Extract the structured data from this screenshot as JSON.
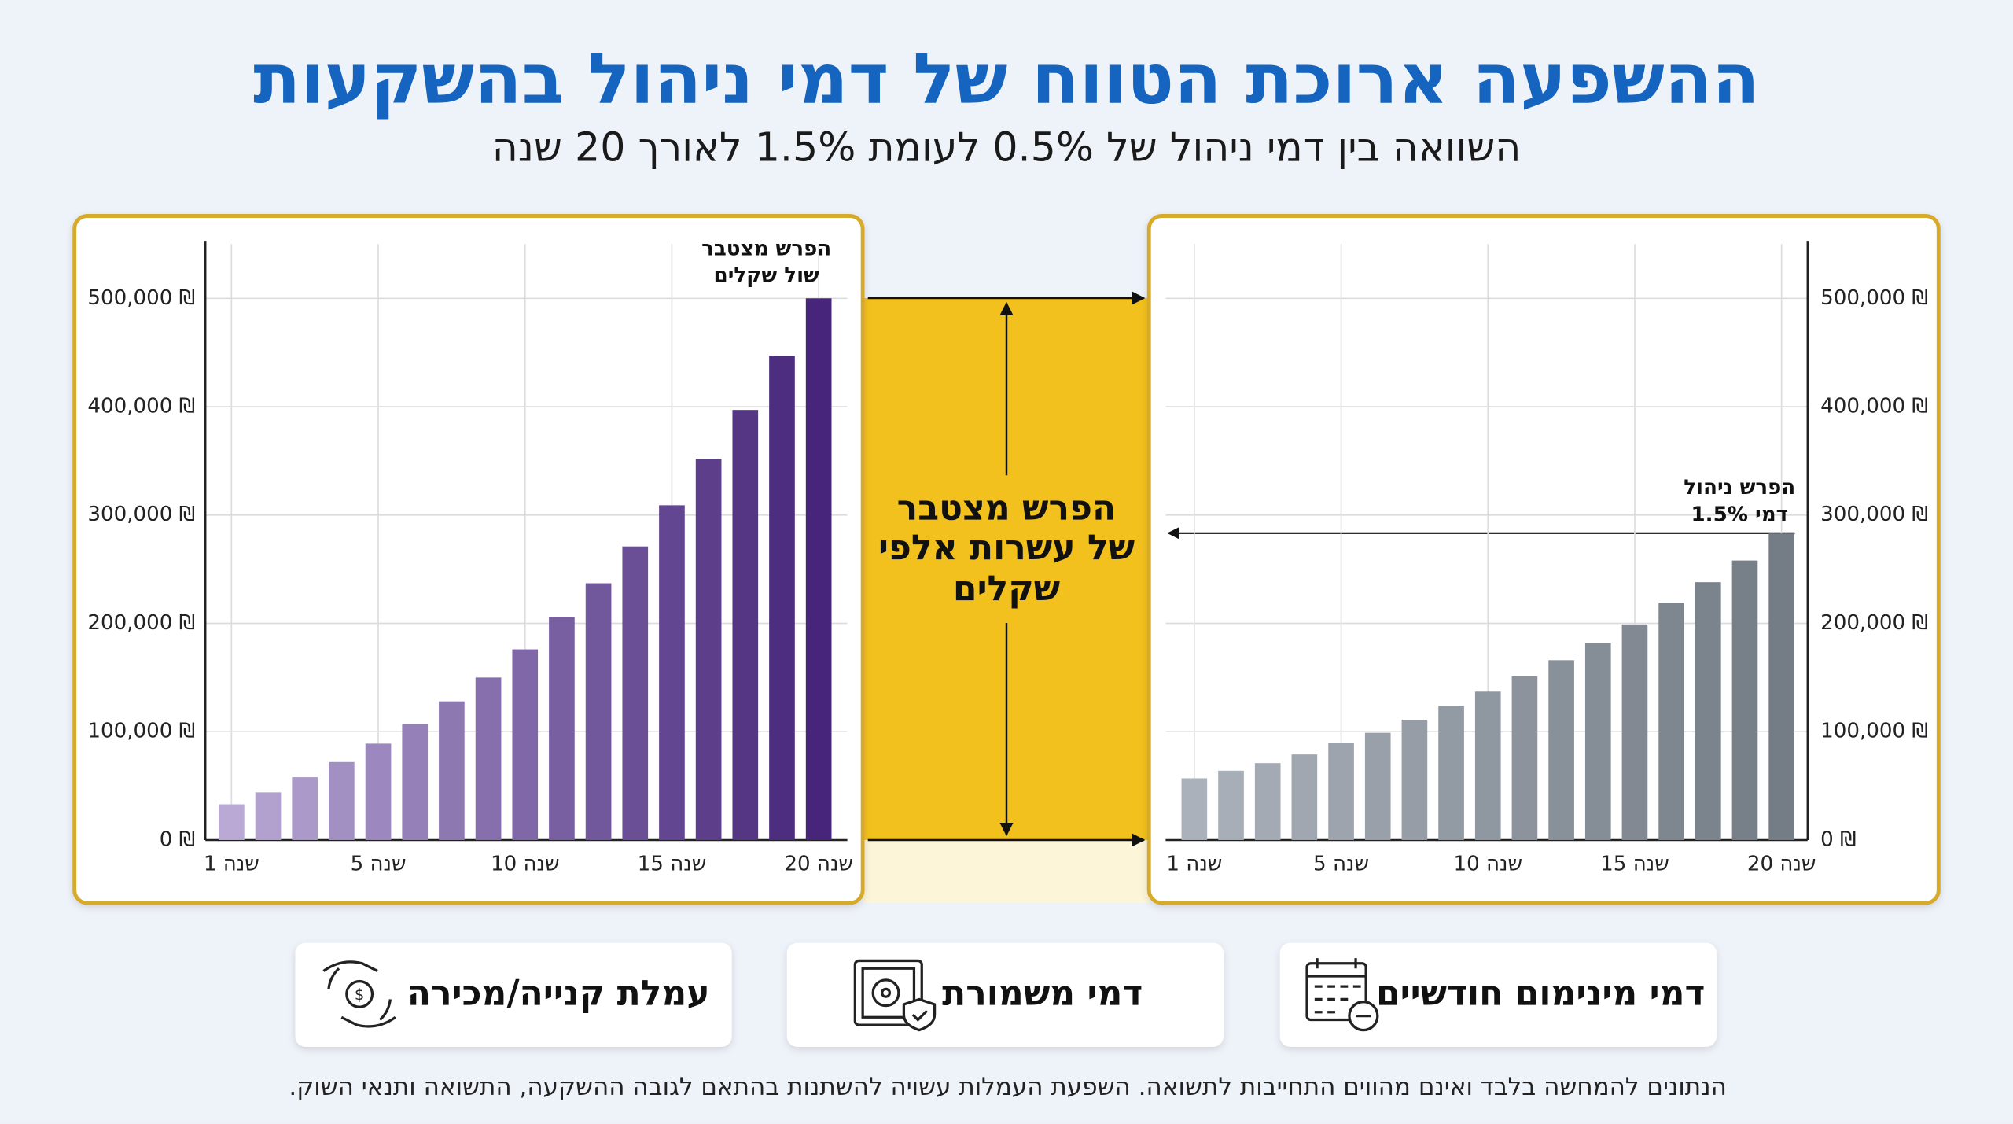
{
  "header": {
    "title": "ההשפעה ארוכת הטווח של דמי ניהול בהשקעות",
    "subtitle": "השוואה בין דמי ניהול של 0.5% לעומת 1.5% לאורך 20 שנה"
  },
  "chart_data": [
    {
      "type": "bar",
      "axis_side": "left",
      "gradient": [
        "#b9a9d4",
        "#46257a"
      ],
      "categories": [
        "שנה 1",
        null,
        null,
        null,
        "שנה 5",
        null,
        null,
        null,
        "שנה 10",
        null,
        null,
        null,
        "שנה 15",
        null,
        null,
        null,
        "שנה 20"
      ],
      "values": [
        33000,
        44000,
        58000,
        72000,
        89000,
        107000,
        128000,
        150000,
        176000,
        206000,
        237000,
        271000,
        309000,
        352000,
        397000,
        447000,
        500000
      ],
      "ylim": [
        0,
        550000
      ],
      "yticks": [
        {
          "value": 0,
          "label": "0 ₪"
        },
        {
          "value": 100000,
          "label": "100,000 ₪"
        },
        {
          "value": 200000,
          "label": "200,000 ₪"
        },
        {
          "value": 300000,
          "label": "300,000 ₪"
        },
        {
          "value": 400000,
          "label": "400,000 ₪"
        },
        {
          "value": 500000,
          "label": "500,000 ₪"
        }
      ],
      "grid": true,
      "annotation": [
        "הפרש מצטבר",
        "שול שקלים"
      ]
    },
    {
      "type": "bar",
      "axis_side": "right",
      "gradient": [
        "#aab1ba",
        "#747c86"
      ],
      "categories": [
        "שנה 1",
        null,
        null,
        null,
        "שנה 5",
        null,
        null,
        null,
        "שנה 10",
        null,
        null,
        null,
        "שנה 15",
        null,
        null,
        null,
        "שנה 20"
      ],
      "values": [
        57000,
        64000,
        71000,
        79000,
        90000,
        99000,
        111000,
        124000,
        137000,
        151000,
        166000,
        182000,
        199000,
        219000,
        238000,
        258000,
        283000
      ],
      "ylim": [
        0,
        550000
      ],
      "yticks": [
        {
          "value": 0,
          "label": "0 ₪"
        },
        {
          "value": 100000,
          "label": "100,000 ₪"
        },
        {
          "value": 200000,
          "label": "200,000 ₪"
        },
        {
          "value": 300000,
          "label": "300,000 ₪"
        },
        {
          "value": 400000,
          "label": "400,000 ₪"
        },
        {
          "value": 500000,
          "label": "500,000 ₪"
        }
      ],
      "grid": true,
      "annotation": [
        "הפרש ניהול",
        "דמי 1.5%"
      ]
    }
  ],
  "center_label": [
    "הפרש מצטבר",
    "של עשרות אלפי",
    "שקלים"
  ],
  "features": [
    "עמלת קנייה/מכירה",
    "דמי משמורת",
    "דמי מינימום חודשיים"
  ],
  "footnote": "הנתונים להמחשה בלבד ואינם מהווים התחייבות לתשואה. השפעת העמלות עשויה להשתנות בהתאם לגובה ההשקעה, התשואה ותנאי השוק."
}
